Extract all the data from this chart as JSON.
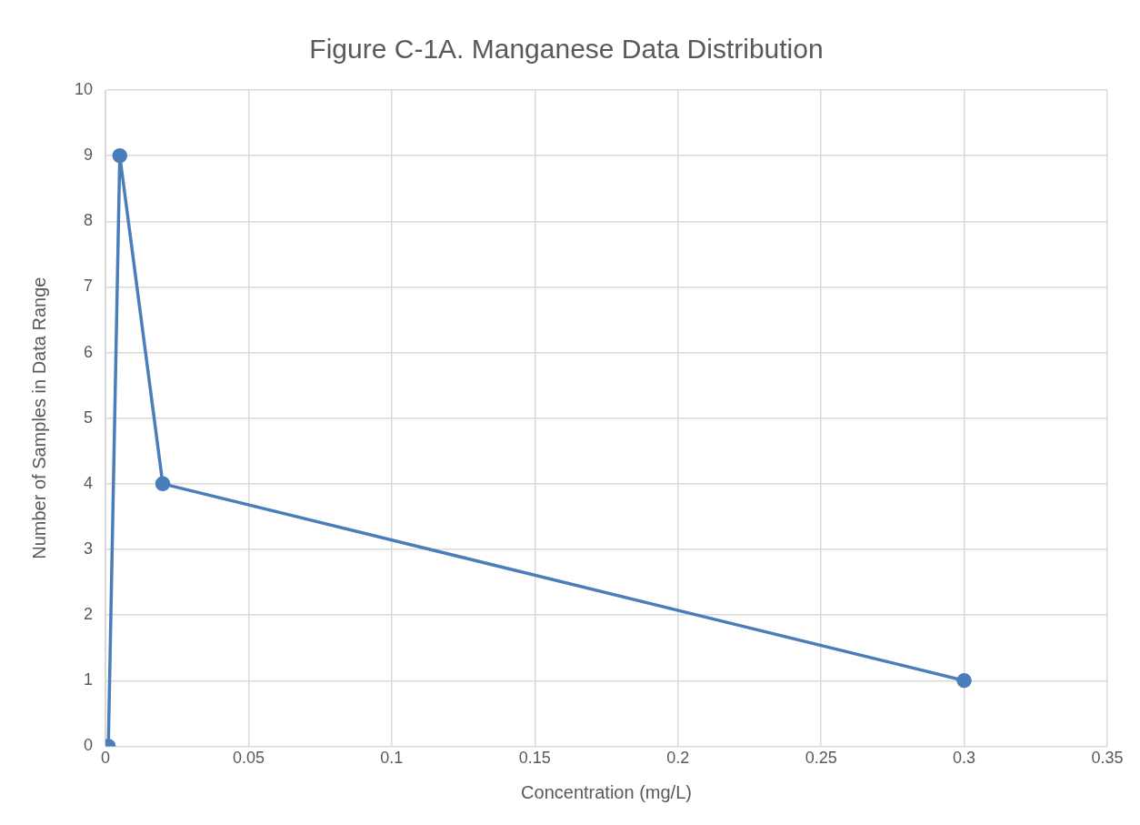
{
  "chart_data": {
    "type": "line",
    "title": "Figure C-1A. Manganese Data Distribution",
    "xlabel": "Concentration (mg/L)",
    "ylabel": "Number of Samples in Data Range",
    "x": [
      0.001,
      0.005,
      0.02,
      0.3
    ],
    "series": [
      {
        "color": "#4a7ebb",
        "values": [
          0,
          9,
          4,
          1
        ]
      }
    ],
    "xlim": [
      0,
      0.35
    ],
    "xticks": [
      0,
      0.05,
      0.1,
      0.15,
      0.2,
      0.25,
      0.3,
      0.35
    ],
    "ylim": [
      0,
      10
    ],
    "yticks": [
      0,
      1,
      2,
      3,
      4,
      5,
      6,
      7,
      8,
      9,
      10
    ],
    "grid": true,
    "marker": "circle",
    "line_style": "solid",
    "legend": false
  }
}
